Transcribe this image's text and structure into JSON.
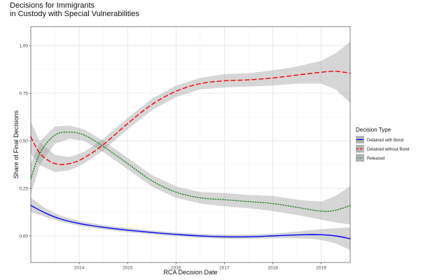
{
  "chart_data": {
    "type": "line",
    "title": [
      "Decisions for Immigrants",
      "in Custody with Special Vulnerabilities"
    ],
    "xlabel": "RCA Decision Date",
    "ylabel": "Share of Final Decisions",
    "xlim": [
      2013.0,
      2019.6
    ],
    "ylim": [
      -0.14,
      1.1
    ],
    "x_ticks": [
      "2014",
      "2015",
      "2016",
      "2017",
      "2018",
      "2019"
    ],
    "y_ticks": [
      "0.00",
      "0.25",
      "0.50",
      "0.75",
      "1.00"
    ],
    "grid": true,
    "legend": {
      "title": "Decision Type",
      "position": "right"
    },
    "series": [
      {
        "name": "Detained with Bond",
        "color": "#0000ff",
        "dash": "solid",
        "x": [
          2013.0,
          2013.3,
          2013.6,
          2014.0,
          2014.5,
          2015.0,
          2015.5,
          2016.0,
          2016.5,
          2017.0,
          2017.5,
          2018.0,
          2018.5,
          2018.8,
          2019.0,
          2019.3,
          2019.6
        ],
        "y": [
          0.16,
          0.12,
          0.09,
          0.065,
          0.045,
          0.03,
          0.018,
          0.008,
          0.0,
          -0.005,
          -0.005,
          0.0,
          0.005,
          0.007,
          0.006,
          0.0,
          -0.015
        ],
        "band_lo": [
          0.125,
          0.1,
          0.075,
          0.052,
          0.033,
          0.019,
          0.008,
          -0.002,
          -0.011,
          -0.016,
          -0.016,
          -0.012,
          -0.013,
          -0.016,
          -0.022,
          -0.04,
          -0.075
        ],
        "band_hi": [
          0.2,
          0.145,
          0.108,
          0.078,
          0.057,
          0.041,
          0.028,
          0.018,
          0.011,
          0.006,
          0.006,
          0.012,
          0.023,
          0.03,
          0.035,
          0.04,
          0.045
        ]
      },
      {
        "name": "Detained without Bond",
        "color": "#ff0000",
        "dash": "long",
        "x": [
          2013.0,
          2013.2,
          2013.5,
          2013.8,
          2014.1,
          2014.5,
          2015.0,
          2015.5,
          2016.0,
          2016.5,
          2017.0,
          2017.5,
          2018.0,
          2018.5,
          2019.0,
          2019.3,
          2019.6
        ],
        "y": [
          0.52,
          0.43,
          0.38,
          0.38,
          0.41,
          0.48,
          0.59,
          0.69,
          0.76,
          0.8,
          0.815,
          0.82,
          0.83,
          0.845,
          0.86,
          0.865,
          0.855
        ],
        "band_lo": [
          0.43,
          0.37,
          0.335,
          0.345,
          0.38,
          0.45,
          0.56,
          0.66,
          0.73,
          0.77,
          0.78,
          0.785,
          0.79,
          0.8,
          0.8,
          0.77,
          0.7
        ],
        "band_hi": [
          0.6,
          0.49,
          0.425,
          0.415,
          0.44,
          0.51,
          0.62,
          0.72,
          0.79,
          0.83,
          0.85,
          0.855,
          0.87,
          0.89,
          0.92,
          0.96,
          1.02
        ]
      },
      {
        "name": "Released",
        "color": "#1a8a1a",
        "dash": "dotted",
        "x": [
          2013.0,
          2013.2,
          2013.5,
          2013.8,
          2014.1,
          2014.5,
          2015.0,
          2015.5,
          2016.0,
          2016.5,
          2017.0,
          2017.5,
          2018.0,
          2018.5,
          2019.0,
          2019.3,
          2019.6
        ],
        "y": [
          0.3,
          0.44,
          0.53,
          0.545,
          0.53,
          0.47,
          0.38,
          0.29,
          0.23,
          0.2,
          0.19,
          0.18,
          0.17,
          0.15,
          0.13,
          0.135,
          0.16
        ],
        "band_lo": [
          0.22,
          0.38,
          0.485,
          0.51,
          0.5,
          0.44,
          0.35,
          0.26,
          0.2,
          0.17,
          0.155,
          0.145,
          0.13,
          0.11,
          0.085,
          0.07,
          0.06
        ],
        "band_hi": [
          0.38,
          0.5,
          0.575,
          0.58,
          0.56,
          0.5,
          0.41,
          0.32,
          0.26,
          0.23,
          0.225,
          0.215,
          0.21,
          0.19,
          0.18,
          0.21,
          0.26
        ]
      }
    ]
  }
}
